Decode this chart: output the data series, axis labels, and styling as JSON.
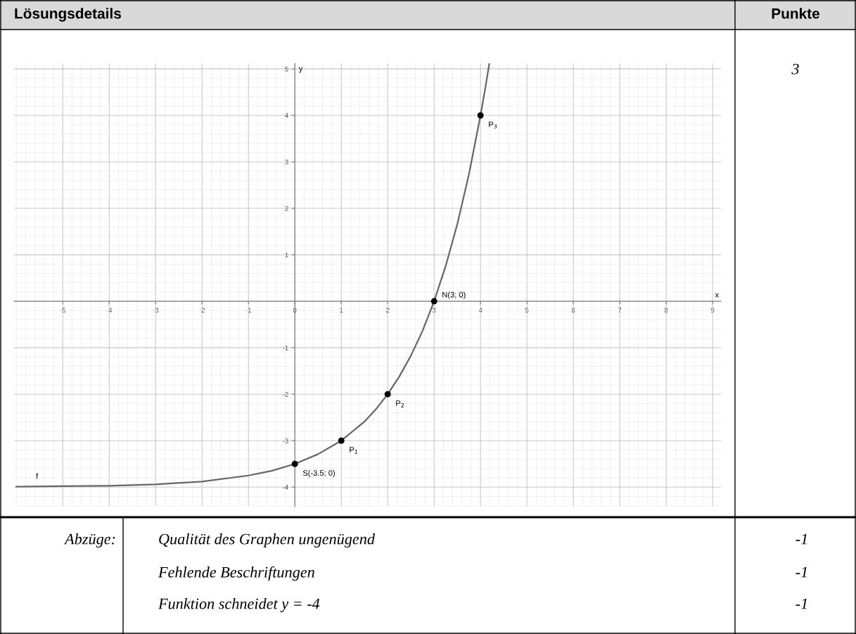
{
  "chart_data": {
    "type": "line",
    "title": "Lösungsdetails",
    "xlabel": "x",
    "ylabel": "y",
    "xlim": [
      -6.05,
      9.18
    ],
    "ylim": [
      -4.42,
      5.12
    ],
    "xticks": [
      -5,
      -4,
      -3,
      -2,
      -1,
      0,
      1,
      2,
      3,
      4,
      5,
      6,
      7,
      8,
      9
    ],
    "yticks": [
      -4,
      -3,
      -2,
      -1,
      1,
      2,
      3,
      4,
      5
    ],
    "grid": true,
    "series": [
      {
        "name": "f",
        "color": "#666666",
        "x": [
          -6,
          -5,
          -4,
          -3,
          -2,
          -1,
          -0.5,
          0,
          0.5,
          1,
          1.5,
          1.75,
          2,
          2.25,
          2.5,
          2.75,
          3,
          3.25,
          3.5,
          3.75,
          4,
          4.1,
          4.19
        ],
        "values": [
          -3.99,
          -3.98,
          -3.97,
          -3.94,
          -3.88,
          -3.75,
          -3.65,
          -3.5,
          -3.29,
          -3,
          -2.59,
          -2.32,
          -2,
          -1.62,
          -1.17,
          -0.64,
          0,
          0.76,
          1.66,
          2.73,
          4,
          4.57,
          5.12
        ]
      },
      {
        "type": "scatter",
        "color": "#000000",
        "marker": "circle",
        "x": [
          0,
          1,
          2,
          3,
          4
        ],
        "values": [
          -3.5,
          -3,
          -2,
          0,
          4
        ]
      }
    ],
    "annotations": [
      {
        "text": "S(-3.5; 0)",
        "x": 0,
        "y": -3.5
      },
      {
        "text": "P$_{1}$",
        "x": 1,
        "y": -3
      },
      {
        "text": "P$_{2}$",
        "x": 2,
        "y": -2
      },
      {
        "text": "N(3; 0)",
        "x": 3,
        "y": 0
      },
      {
        "text": "P$_{3}$",
        "x": 4,
        "y": 4
      },
      "Punkte",
      "3",
      "Abzüge:",
      "Qualität des Graphen ungenügend",
      "-1",
      "Fehlende Beschriftungen",
      "-1",
      "Funktion schneidet y = -4",
      "-1"
    ]
  }
}
